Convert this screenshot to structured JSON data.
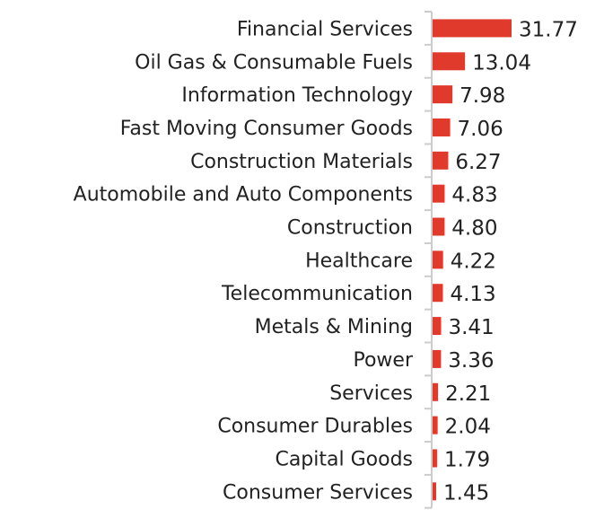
{
  "chart_data": {
    "type": "bar",
    "orientation": "horizontal",
    "title": "",
    "xlabel": "",
    "ylabel": "",
    "categories": [
      "Financial Services",
      "Oil Gas & Consumable Fuels",
      "Information Technology",
      "Fast Moving Consumer Goods",
      "Construction Materials",
      "Automobile and Auto Components",
      "Construction",
      "Healthcare",
      "Telecommunication",
      "Metals & Mining",
      "Power",
      "Services",
      "Consumer Durables",
      "Capital Goods",
      "Consumer Services"
    ],
    "values": [
      31.77,
      13.04,
      7.98,
      7.06,
      6.27,
      4.83,
      4.8,
      4.22,
      4.13,
      3.41,
      3.36,
      2.21,
      2.04,
      1.79,
      1.45
    ],
    "value_labels": [
      "31.77",
      "13.04",
      "7.98",
      "7.06",
      "6.27",
      "4.83",
      "4.80",
      "4.22",
      "4.13",
      "3.41",
      "3.36",
      "2.21",
      "2.04",
      "1.79",
      "1.45"
    ],
    "xlim": [
      0,
      31.77
    ],
    "grid": false,
    "legend": "none",
    "bar_color": "#e03a2c",
    "axis_color": "#cccccc"
  }
}
